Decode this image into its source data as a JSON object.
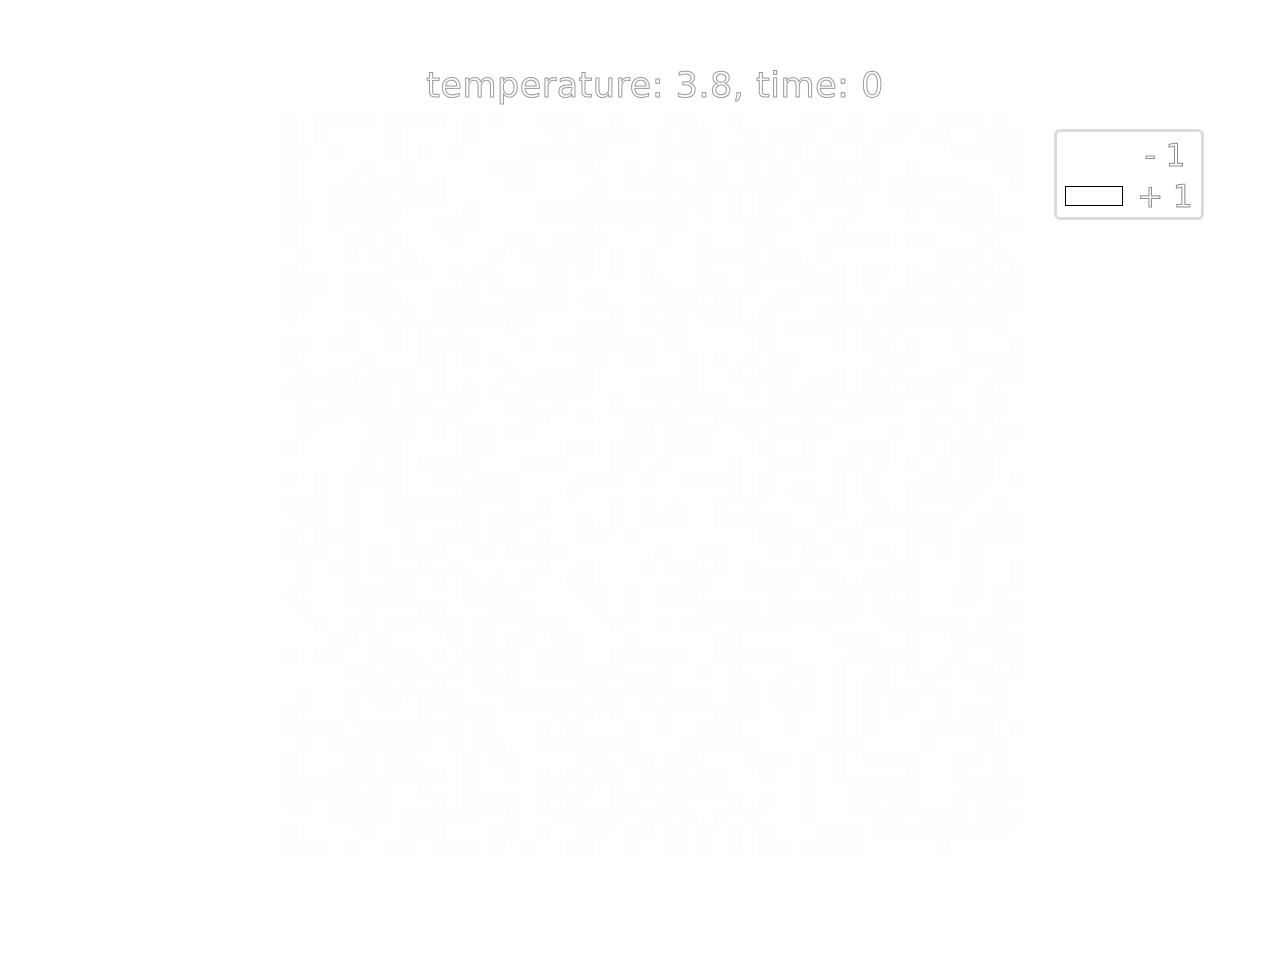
{
  "chart_data": {
    "type": "heatmap",
    "title": "temperature: 3.8, time: 0",
    "xlabel": "",
    "ylabel": "",
    "grid": false,
    "axes_visible": false,
    "lattice_size": [
      50,
      50
    ],
    "spin_values": [
      -1,
      1
    ],
    "legend": {
      "placement": "top-right",
      "entries": [
        {
          "label": "- 1",
          "value": -1,
          "color": "#ffffff",
          "border": "none"
        },
        {
          "label": "+ 1",
          "value": 1,
          "color": "#ffffff",
          "border": "#000000"
        }
      ]
    },
    "cell_colors": {
      "-1": "#ffffff",
      "1": "#fdfdfd"
    }
  }
}
